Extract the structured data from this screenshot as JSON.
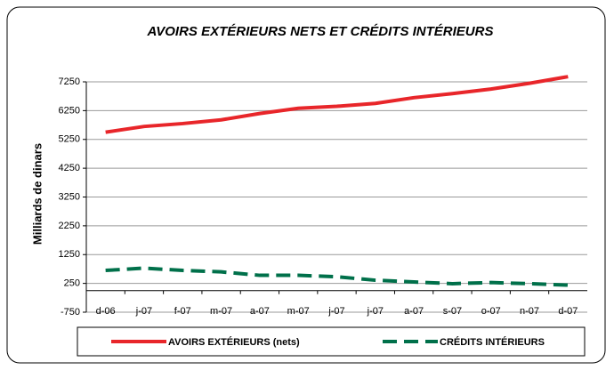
{
  "chart_data": {
    "type": "line",
    "title": "AVOIRS EXTÉRIEURS NETS ET CRÉDITS INTÉRIEURS",
    "y_label": "Milliards de dinars",
    "categories": [
      "d-06",
      "j-07",
      "f-07",
      "m-07",
      "a-07",
      "m-07",
      "j-07",
      "j-07",
      "a-07",
      "s-07",
      "o-07",
      "n-07",
      "d-07"
    ],
    "series": [
      {
        "name": "AVOIRS EXTÉRIEURS (nets)",
        "color": "#e8262a",
        "dash": false,
        "values": [
          5500,
          5700,
          5800,
          5930,
          6150,
          6330,
          6400,
          6500,
          6700,
          6840,
          7000,
          7200,
          7430
        ]
      },
      {
        "name": "CRÉDITS INTÉRIEURS",
        "color": "#00704a",
        "dash": true,
        "values": [
          700,
          780,
          700,
          650,
          530,
          530,
          480,
          360,
          300,
          240,
          280,
          240,
          190
        ]
      }
    ],
    "ylim": [
      -750,
      7250
    ],
    "yticks": [
      -750,
      250,
      1250,
      2250,
      3250,
      4250,
      5250,
      6250,
      7250
    ],
    "grid": true,
    "legend": "bottom"
  }
}
